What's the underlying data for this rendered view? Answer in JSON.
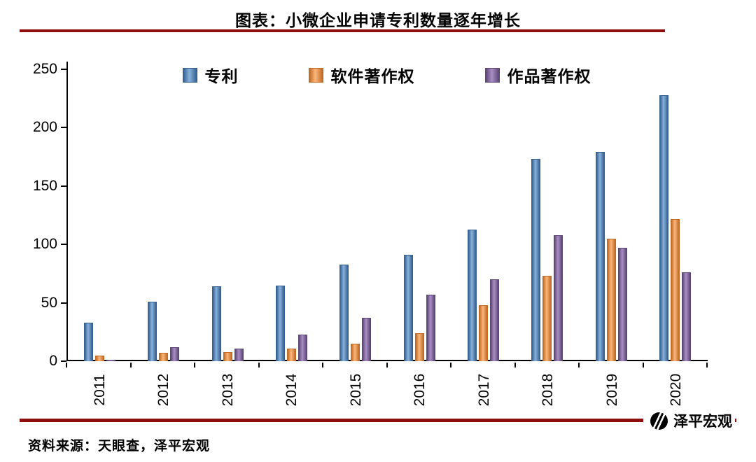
{
  "title": "图表：小微企业申请专利数量逐年增长",
  "source_note": "资料来源：天眼查，泽平宏观",
  "logo_text": "泽平宏观",
  "divider_color": "#8e0e0e",
  "chart_data": {
    "type": "bar",
    "title": "图表：小微企业申请专利数量逐年增长",
    "categories": [
      "2011",
      "2012",
      "2013",
      "2014",
      "2015",
      "2016",
      "2017",
      "2018",
      "2019",
      "2020"
    ],
    "series": [
      {
        "name": "专利",
        "key": "patent",
        "color": "#4f81bd",
        "light": "#89b1dd",
        "dark": "#35608f",
        "values": [
          33,
          51,
          64,
          65,
          83,
          91,
          113,
          173,
          179,
          228
        ]
      },
      {
        "name": "软件著作权",
        "key": "software-copyright",
        "color": "#f79646",
        "light": "#fbb77c",
        "dark": "#c06a24",
        "values": [
          5,
          7,
          8,
          11,
          15,
          24,
          48,
          73,
          105,
          122
        ]
      },
      {
        "name": "作品著作权",
        "key": "works-copyright",
        "color": "#8064a2",
        "light": "#a98fc4",
        "dark": "#5c4675",
        "values": [
          1,
          12,
          11,
          23,
          37,
          57,
          70,
          108,
          97,
          76
        ]
      }
    ],
    "xlabel": "",
    "ylabel": "",
    "ylim": [
      0,
      250
    ],
    "yticks": [
      0,
      50,
      100,
      150,
      200,
      250
    ],
    "grid": false,
    "legend_position": "top"
  }
}
